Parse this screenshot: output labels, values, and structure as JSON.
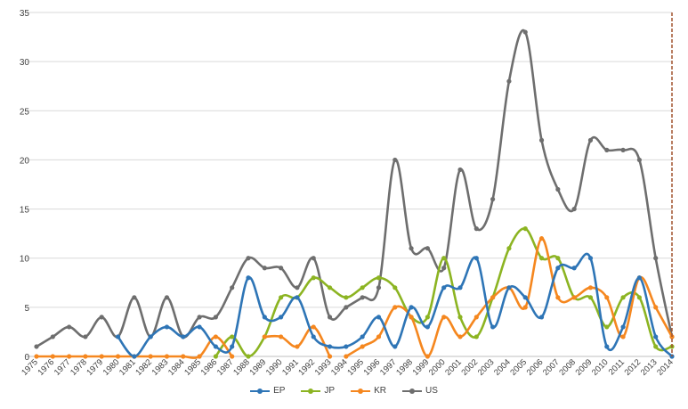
{
  "chart_data": {
    "type": "line",
    "title": "",
    "xlabel": "",
    "ylabel": "",
    "ylim": [
      0,
      35
    ],
    "yticks": [
      "0",
      "5",
      "10",
      "15",
      "20",
      "25",
      "30",
      "35"
    ],
    "grid": "horizontal",
    "legend_position": "bottom",
    "categories": [
      "1975",
      "1976",
      "1977",
      "1978",
      "1979",
      "1980",
      "1981",
      "1982",
      "1983",
      "1984",
      "1985",
      "1986",
      "1987",
      "1988",
      "1989",
      "1990",
      "1991",
      "1992",
      "1993",
      "1994",
      "1995",
      "1996",
      "1997",
      "1998",
      "1999",
      "2000",
      "2001",
      "2002",
      "2003",
      "2004",
      "2005",
      "2006",
      "2007",
      "2008",
      "2009",
      "2010",
      "2011",
      "2012",
      "2013",
      "2014"
    ],
    "marker_line_year": "2014",
    "marker_line_color": "#A0522D",
    "series": [
      {
        "name": "EP",
        "color": "#2E75B6",
        "values": [
          null,
          null,
          null,
          null,
          null,
          2,
          0,
          2,
          3,
          2,
          3,
          1,
          1,
          8,
          4,
          4,
          6,
          2,
          1,
          1,
          2,
          4,
          1,
          5,
          3,
          7,
          7,
          10,
          3,
          7,
          6,
          4,
          9,
          9,
          10,
          1,
          3,
          8,
          2,
          0
        ],
        "starts": [
          5
        ]
      },
      {
        "name": "JP",
        "color": "#8CB422",
        "values": [
          null,
          null,
          null,
          null,
          null,
          null,
          null,
          null,
          null,
          null,
          null,
          0,
          2,
          0,
          2,
          6,
          6,
          8,
          7,
          6,
          7,
          8,
          7,
          4,
          4,
          10,
          4,
          2,
          6,
          11,
          13,
          10,
          10,
          6,
          6,
          3,
          6,
          6,
          1,
          1
        ],
        "starts": [
          11
        ]
      },
      {
        "name": "KR",
        "color": "#F5871F",
        "values": [
          0,
          0,
          0,
          0,
          0,
          0,
          0,
          0,
          0,
          0,
          0,
          2,
          0,
          null,
          2,
          2,
          1,
          3,
          0,
          0,
          1,
          2,
          5,
          4,
          0,
          4,
          2,
          4,
          6,
          7,
          5,
          12,
          6,
          6,
          7,
          6,
          2,
          8,
          5,
          2
        ],
        "starts": [
          0,
          14,
          19
        ]
      },
      {
        "name": "US",
        "color": "#6E6E6E",
        "values": [
          1,
          2,
          3,
          2,
          4,
          2,
          6,
          2,
          6,
          2,
          4,
          4,
          7,
          10,
          9,
          9,
          7,
          10,
          4,
          5,
          6,
          7,
          20,
          11,
          11,
          9,
          19,
          13,
          16,
          28,
          33,
          22,
          17,
          15,
          22,
          21,
          21,
          20,
          10,
          2
        ],
        "starts": [
          0
        ]
      }
    ]
  }
}
